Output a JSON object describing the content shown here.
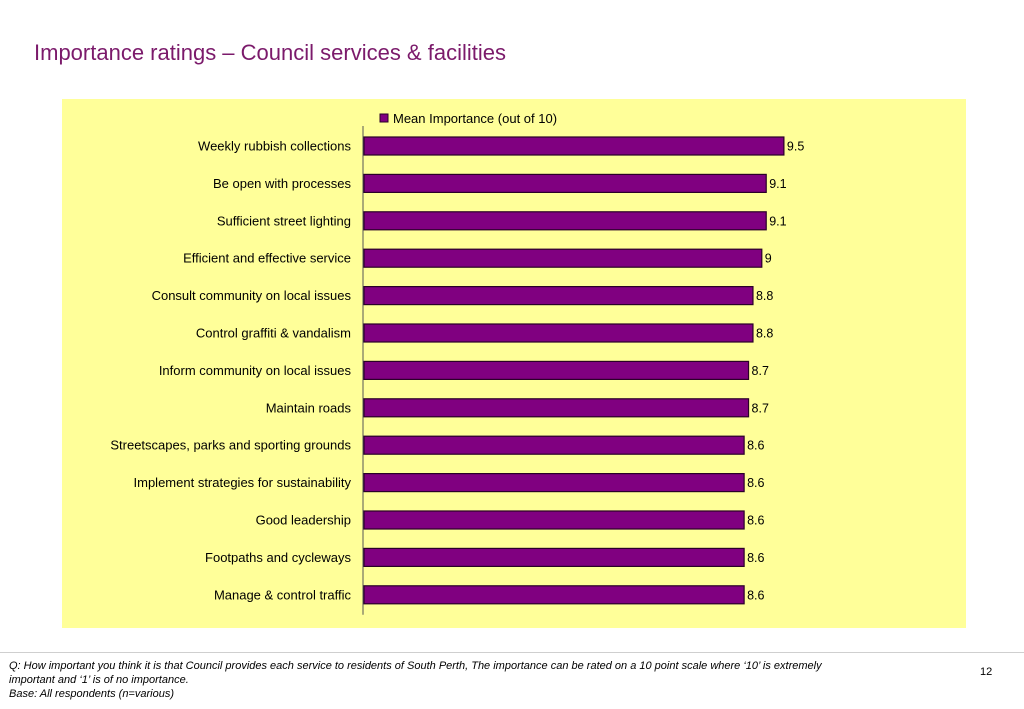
{
  "slide": {
    "title": "Importance ratings – Council services & facilities",
    "footnote_question": "Q: How important you think it is that Council provides each service to residents of South Perth, The importance can be rated on a 10 point scale where ‘10’ is extremely important and ‘1’ is of no importance.",
    "footnote_base": "Base: All respondents (n=various)",
    "page_number": "12"
  },
  "colors": {
    "title": "#7b1a6b",
    "panel_background": "#ffff99",
    "bar_fill": "#800080",
    "bar_edge": "#2a0028"
  },
  "chart_data": {
    "type": "bar",
    "orientation": "horizontal",
    "categories": [
      "Weekly rubbish collections",
      "Be open with processes",
      "Sufficient street lighting",
      "Efficient and effective service",
      "Consult  community on local issues",
      "Control graffiti & vandalism",
      "Inform community on local issues",
      "Maintain roads",
      "Streetscapes, parks and sporting grounds",
      "Implement strategies for sustainability",
      "Good leadership",
      "Footpaths and cycleways",
      "Manage & control traffic"
    ],
    "series": [
      {
        "name": "Mean Importance (out of 10)",
        "values": [
          9.5,
          9.1,
          9.1,
          9,
          8.8,
          8.8,
          8.7,
          8.7,
          8.6,
          8.6,
          8.6,
          8.6,
          8.6
        ]
      }
    ],
    "value_labels": [
      "9.5",
      "9.1",
      "9.1",
      "9",
      "8.8",
      "8.8",
      "8.7",
      "8.7",
      "8.6",
      "8.6",
      "8.6",
      "8.6",
      "8.6"
    ],
    "xlim": [
      0,
      10
    ],
    "grid": false,
    "legend": "top-center"
  }
}
